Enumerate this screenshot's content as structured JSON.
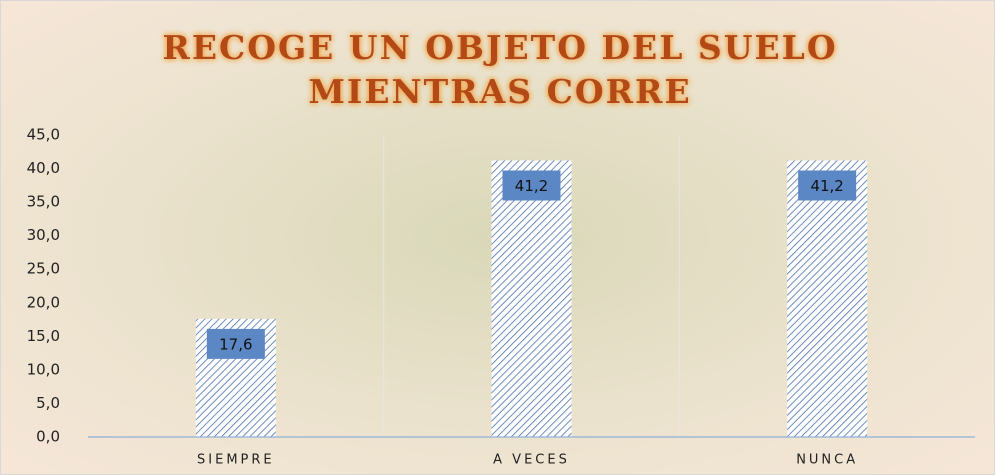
{
  "chart_data": {
    "type": "bar",
    "title": [
      "RECOGE UN OBJETO DEL SUELO",
      "MIENTRAS CORRE"
    ],
    "categories": [
      "SIEMPRE",
      "A VECES",
      "NUNCA"
    ],
    "values": [
      17.6,
      41.2,
      41.2
    ],
    "value_labels": [
      "17,6",
      "41,2",
      "41,2"
    ],
    "color": "#4a6fb0",
    "label_color": "#5b87c5",
    "ylim": [
      0,
      45
    ],
    "yticks": [
      {
        "value": 0,
        "label": "0,0"
      },
      {
        "value": 5,
        "label": "5,0"
      },
      {
        "value": 10,
        "label": "10,0"
      },
      {
        "value": 15,
        "label": "15,0"
      },
      {
        "value": 20,
        "label": "20,0"
      },
      {
        "value": 25,
        "label": "25,0"
      },
      {
        "value": 30,
        "label": "30,0"
      },
      {
        "value": 35,
        "label": "35,0"
      },
      {
        "value": 40,
        "label": "40,0"
      },
      {
        "value": 45,
        "label": "45,0"
      }
    ]
  }
}
